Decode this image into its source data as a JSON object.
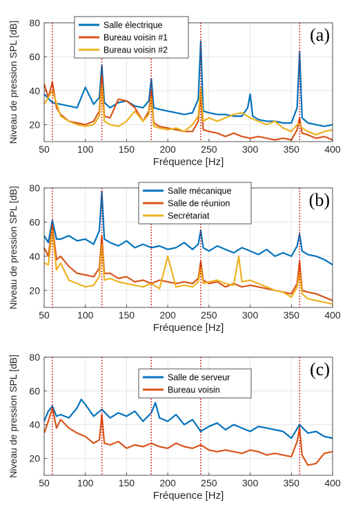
{
  "chart_data": [
    {
      "type": "line",
      "panel_label": "(a)",
      "xlabel": "Fréquence [Hz]",
      "ylabel": "Niveau de pression SPL [dB]",
      "xlim": [
        50,
        400
      ],
      "ylim": [
        10,
        80
      ],
      "xticks": [
        50,
        100,
        150,
        200,
        250,
        300,
        350,
        400
      ],
      "yticks": [
        20,
        40,
        60,
        80
      ],
      "grid": true,
      "legend_position": "top-center",
      "vlines": [
        60,
        120,
        180,
        240,
        360
      ],
      "series": [
        {
          "name": "Salle électrique",
          "color": "#0072BD",
          "x": [
            50,
            60,
            70,
            80,
            90,
            100,
            110,
            117,
            120,
            123,
            130,
            140,
            150,
            160,
            170,
            177,
            180,
            183,
            190,
            200,
            210,
            220,
            230,
            237,
            240,
            243,
            250,
            260,
            270,
            280,
            290,
            297,
            300,
            303,
            310,
            320,
            330,
            340,
            350,
            357,
            360,
            363,
            370,
            380,
            390,
            400
          ],
          "y": [
            38,
            33,
            32,
            31,
            30,
            42,
            32,
            36,
            55,
            33,
            30,
            33,
            34,
            31,
            30,
            34,
            47,
            30,
            29,
            28,
            27,
            26,
            27,
            35,
            69,
            28,
            27,
            26,
            26,
            25,
            25,
            30,
            38,
            25,
            23,
            22,
            22,
            21,
            21,
            30,
            63,
            24,
            21,
            20,
            19,
            20
          ]
        },
        {
          "name": "Bureau voisin #1",
          "color": "#D95319",
          "x": [
            50,
            55,
            60,
            65,
            70,
            80,
            90,
            100,
            110,
            117,
            120,
            123,
            130,
            140,
            150,
            160,
            170,
            177,
            180,
            183,
            190,
            200,
            210,
            220,
            230,
            237,
            240,
            243,
            250,
            260,
            270,
            280,
            290,
            300,
            310,
            320,
            330,
            340,
            350,
            357,
            360,
            363,
            370,
            380,
            390,
            400
          ],
          "y": [
            44,
            36,
            45,
            30,
            26,
            22,
            21,
            20,
            22,
            28,
            49,
            25,
            24,
            35,
            34,
            30,
            22,
            28,
            40,
            21,
            19,
            18,
            17,
            16,
            16,
            22,
            38,
            17,
            16,
            15,
            13,
            15,
            13,
            12,
            13,
            12,
            11,
            12,
            11,
            17,
            24,
            15,
            14,
            12,
            13,
            11
          ]
        },
        {
          "name": "Bureau voisin #2",
          "color": "#EDB120",
          "x": [
            50,
            60,
            70,
            80,
            90,
            100,
            110,
            117,
            120,
            123,
            130,
            140,
            150,
            160,
            170,
            177,
            180,
            183,
            190,
            200,
            210,
            220,
            230,
            237,
            240,
            243,
            250,
            260,
            270,
            280,
            290,
            300,
            310,
            320,
            330,
            340,
            350,
            357,
            360,
            363,
            370,
            380,
            390,
            400
          ],
          "y": [
            32,
            40,
            25,
            22,
            20,
            19,
            20,
            25,
            43,
            22,
            20,
            19,
            22,
            28,
            22,
            26,
            36,
            19,
            18,
            17,
            18,
            16,
            20,
            25,
            42,
            22,
            24,
            22,
            24,
            26,
            27,
            24,
            22,
            20,
            22,
            18,
            16,
            20,
            21,
            18,
            16,
            14,
            16,
            17
          ]
        }
      ]
    },
    {
      "type": "line",
      "panel_label": "(b)",
      "xlabel": "Fréquence [Hz]",
      "ylabel": "Niveau de pression SPL [dB]",
      "xlim": [
        50,
        400
      ],
      "ylim": [
        10,
        80
      ],
      "xticks": [
        50,
        100,
        150,
        200,
        250,
        300,
        350,
        400
      ],
      "yticks": [
        20,
        40,
        60,
        80
      ],
      "grid": true,
      "legend_position": "top-right",
      "vlines": [
        60,
        120,
        180,
        240,
        360
      ],
      "series": [
        {
          "name": "Salle mécanique",
          "color": "#0072BD",
          "x": [
            50,
            55,
            60,
            65,
            70,
            80,
            90,
            100,
            110,
            117,
            120,
            123,
            130,
            140,
            150,
            160,
            170,
            180,
            190,
            200,
            210,
            220,
            230,
            237,
            240,
            243,
            250,
            260,
            270,
            280,
            290,
            300,
            310,
            320,
            330,
            340,
            350,
            357,
            360,
            363,
            370,
            380,
            390,
            400
          ],
          "y": [
            52,
            48,
            61,
            50,
            50,
            52,
            49,
            50,
            47,
            55,
            78,
            50,
            48,
            46,
            49,
            45,
            47,
            45,
            46,
            44,
            45,
            48,
            44,
            47,
            55,
            45,
            43,
            46,
            44,
            42,
            45,
            43,
            41,
            44,
            40,
            42,
            40,
            46,
            53,
            43,
            41,
            40,
            38,
            35
          ]
        },
        {
          "name": "Salle de réunion",
          "color": "#D95319",
          "x": [
            50,
            55,
            60,
            65,
            70,
            80,
            90,
            100,
            110,
            117,
            120,
            123,
            130,
            140,
            150,
            160,
            170,
            180,
            190,
            200,
            210,
            220,
            230,
            237,
            240,
            243,
            250,
            260,
            270,
            280,
            290,
            300,
            310,
            320,
            330,
            340,
            350,
            357,
            360,
            363,
            370,
            380,
            390,
            400
          ],
          "y": [
            45,
            40,
            58,
            38,
            40,
            34,
            30,
            29,
            28,
            33,
            52,
            30,
            30,
            27,
            28,
            25,
            26,
            24,
            26,
            25,
            24,
            25,
            24,
            27,
            37,
            26,
            24,
            25,
            22,
            24,
            22,
            23,
            22,
            21,
            20,
            19,
            18,
            24,
            37,
            20,
            19,
            18,
            16,
            14
          ]
        },
        {
          "name": "Secrétariat",
          "color": "#EDB120",
          "x": [
            50,
            55,
            60,
            65,
            70,
            80,
            90,
            100,
            110,
            117,
            120,
            123,
            130,
            140,
            150,
            160,
            170,
            180,
            190,
            200,
            210,
            220,
            230,
            237,
            240,
            243,
            250,
            260,
            270,
            280,
            286,
            290,
            300,
            310,
            320,
            330,
            340,
            350,
            357,
            360,
            363,
            370,
            380,
            390,
            400
          ],
          "y": [
            36,
            35,
            55,
            32,
            36,
            26,
            24,
            22,
            23,
            28,
            47,
            26,
            27,
            25,
            24,
            23,
            22,
            24,
            21,
            40,
            22,
            23,
            22,
            25,
            33,
            24,
            25,
            26,
            24,
            23,
            40,
            25,
            26,
            24,
            22,
            20,
            19,
            16,
            22,
            30,
            18,
            15,
            14,
            13,
            12
          ]
        }
      ]
    },
    {
      "type": "line",
      "panel_label": "(c)",
      "xlabel": "Fréquence [Hz]",
      "ylabel": "Niveau de pression SPL [dB]",
      "xlim": [
        50,
        400
      ],
      "ylim": [
        10,
        80
      ],
      "xticks": [
        50,
        100,
        150,
        200,
        250,
        300,
        350,
        400
      ],
      "yticks": [
        20,
        40,
        60,
        80
      ],
      "grid": true,
      "legend_position": "top-right",
      "vlines": [
        60,
        120,
        180,
        240,
        360
      ],
      "series": [
        {
          "name": "Salle de serveur",
          "color": "#0072BD",
          "x": [
            50,
            55,
            60,
            65,
            70,
            80,
            90,
            95,
            100,
            110,
            120,
            130,
            140,
            150,
            160,
            170,
            180,
            185,
            190,
            200,
            210,
            220,
            230,
            240,
            250,
            260,
            270,
            280,
            290,
            300,
            310,
            320,
            330,
            340,
            350,
            360,
            370,
            380,
            390,
            400
          ],
          "y": [
            42,
            48,
            51,
            45,
            46,
            44,
            50,
            55,
            52,
            45,
            49,
            44,
            47,
            45,
            48,
            42,
            47,
            53,
            44,
            42,
            46,
            40,
            43,
            36,
            39,
            41,
            37,
            40,
            38,
            36,
            39,
            38,
            37,
            36,
            32,
            40,
            35,
            36,
            33,
            32
          ]
        },
        {
          "name": "Bureau voisin",
          "color": "#D95319",
          "x": [
            50,
            55,
            60,
            65,
            70,
            80,
            90,
            100,
            110,
            117,
            120,
            123,
            130,
            140,
            150,
            160,
            170,
            180,
            190,
            200,
            210,
            220,
            230,
            240,
            250,
            260,
            270,
            280,
            290,
            300,
            310,
            320,
            330,
            340,
            350,
            357,
            360,
            363,
            370,
            380,
            390,
            400
          ],
          "y": [
            35,
            42,
            50,
            38,
            43,
            38,
            35,
            33,
            29,
            31,
            46,
            29,
            28,
            30,
            26,
            28,
            27,
            29,
            27,
            26,
            29,
            27,
            26,
            28,
            25,
            24,
            25,
            24,
            23,
            25,
            24,
            22,
            23,
            22,
            21,
            30,
            38,
            22,
            16,
            17,
            23,
            24
          ]
        }
      ]
    }
  ]
}
